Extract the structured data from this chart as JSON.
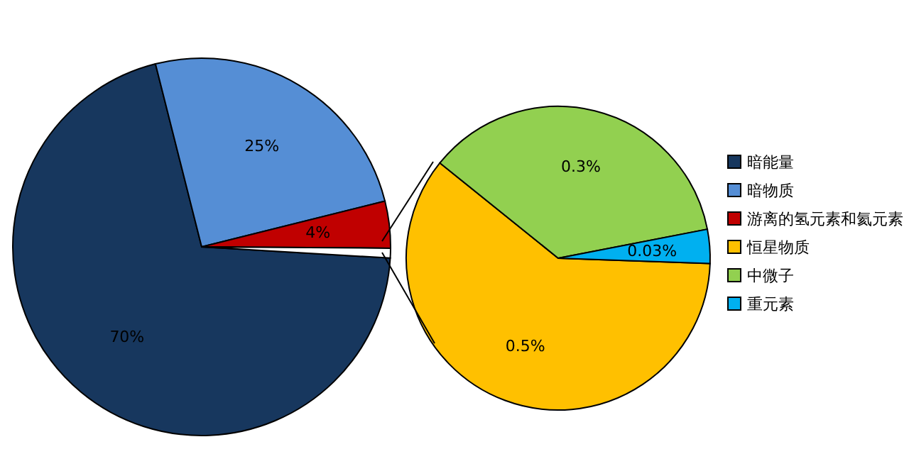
{
  "chart_data": [
    {
      "type": "pie",
      "categories": [
        "暗能量",
        "暗物质",
        "游离的氢元素和氦元素",
        null
      ],
      "values": [
        70,
        25,
        4,
        0.83
      ],
      "colors": [
        "#17375e",
        "#558ed5",
        "#c00000",
        "#ffffff"
      ],
      "value_labels": [
        "70%",
        "25%",
        "4%",
        null
      ],
      "legend": "right"
    },
    {
      "type": "pie",
      "categories": [
        "恒星物质",
        "中微子",
        "重元素"
      ],
      "values": [
        0.5,
        0.3,
        0.03
      ],
      "colors": [
        "#ffc000",
        "#92d050",
        "#00b0f0"
      ],
      "value_labels": [
        "0.5%",
        "0.3%",
        "0.03%"
      ],
      "legend": "right"
    }
  ]
}
